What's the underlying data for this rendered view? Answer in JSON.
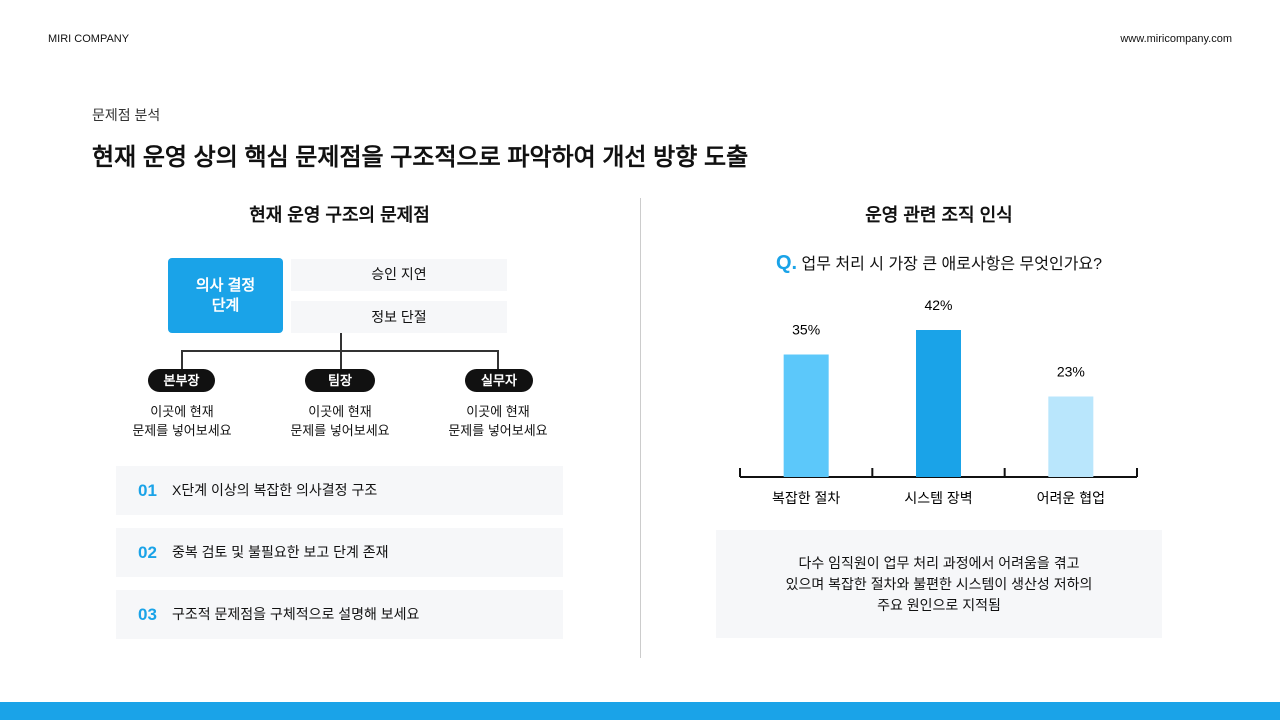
{
  "header": {
    "brand": "MIRI COMPANY",
    "url": "www.miricompany.com"
  },
  "section": {
    "label": "문제점 분석",
    "title": "현재 운영 상의 핵심 문제점을 구조적으로 파악하여 개선 방향 도출"
  },
  "left": {
    "title": "현재 운영 구조의 문제점",
    "decision": "의사 결정\n단계",
    "issues": [
      "승인 지연",
      "정보 단절"
    ],
    "roles": [
      {
        "name": "본부장",
        "desc": "이곳에 현재\n문제를 넣어보세요"
      },
      {
        "name": "팀장",
        "desc": "이곳에 현재\n문제를 넣어보세요"
      },
      {
        "name": "실무자",
        "desc": "이곳에 현재\n문제를 넣어보세요"
      }
    ],
    "problems": [
      {
        "num": "01",
        "text": "X단계 이상의 복잡한 의사결정 구조"
      },
      {
        "num": "02",
        "text": "중복 검토 및 불필요한 보고 단계 존재"
      },
      {
        "num": "03",
        "text": "구조적 문제점을 구체적으로 설명해 보세요"
      }
    ]
  },
  "chart_data": {
    "type": "bar",
    "title": "운영 관련 조직 인식",
    "question_mark": "Q.",
    "question": "업무 처리 시 가장 큰 애로사항은 무엇인가요?",
    "categories": [
      "복잡한 절차",
      "시스템 장벽",
      "어려운 협업"
    ],
    "values": [
      35,
      42,
      23
    ],
    "value_labels": [
      "35%",
      "42%",
      "23%"
    ],
    "colors": [
      "#5cc8fa",
      "#1aa3e8",
      "#b9e6fc"
    ]
  },
  "summary": "다수 임직원이 업무 처리 과정에서 어려움을 겪고\n있으며 복잡한 절차와 불편한 시스템이 생산성 저하의\n주요 원인으로 지적됨"
}
